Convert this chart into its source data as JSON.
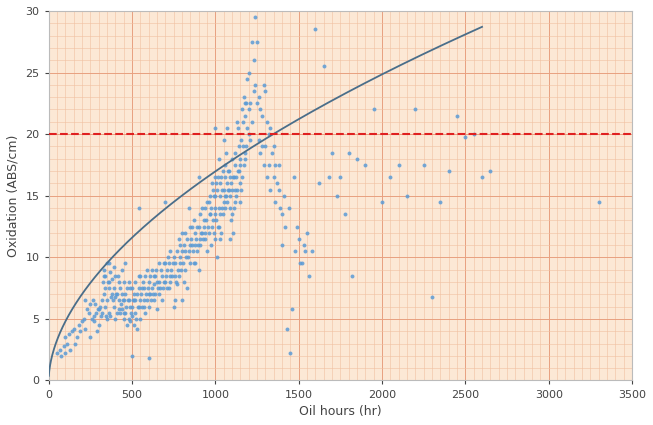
{
  "title": "",
  "xlabel": "Oil hours (hr)",
  "ylabel": "Oxidation (ABS/cm)",
  "xlim": [
    0,
    3500
  ],
  "ylim": [
    0,
    30
  ],
  "xticks": [
    0,
    500,
    1000,
    1500,
    2000,
    2500,
    3000,
    3500
  ],
  "yticks": [
    0,
    5,
    10,
    15,
    20,
    25,
    30
  ],
  "red_line_y": 20,
  "trend_a": 0.38,
  "trend_b": 0.55,
  "background_color": "#fce8d5",
  "grid_major_color": "#e8a080",
  "grid_minor_color": "#f0c0a0",
  "scatter_color": "#5b9bd5",
  "trend_color": "#4a6e8a",
  "red_line_color": "#e02020",
  "scatter_points": [
    [
      50,
      2.2
    ],
    [
      70,
      2.5
    ],
    [
      75,
      2.0
    ],
    [
      90,
      2.8
    ],
    [
      100,
      3.5
    ],
    [
      100,
      2.2
    ],
    [
      110,
      3.0
    ],
    [
      120,
      3.8
    ],
    [
      130,
      2.5
    ],
    [
      140,
      4.0
    ],
    [
      150,
      4.2
    ],
    [
      160,
      3.0
    ],
    [
      170,
      3.5
    ],
    [
      180,
      4.5
    ],
    [
      190,
      4.0
    ],
    [
      200,
      4.8
    ],
    [
      210,
      5.0
    ],
    [
      220,
      6.5
    ],
    [
      220,
      4.2
    ],
    [
      230,
      5.8
    ],
    [
      240,
      5.5
    ],
    [
      250,
      3.5
    ],
    [
      250,
      6.2
    ],
    [
      260,
      5.0
    ],
    [
      265,
      6.5
    ],
    [
      270,
      5.2
    ],
    [
      275,
      4.8
    ],
    [
      280,
      6.2
    ],
    [
      285,
      5.5
    ],
    [
      290,
      4.0
    ],
    [
      295,
      5.8
    ],
    [
      300,
      5.8
    ],
    [
      305,
      4.5
    ],
    [
      310,
      6.0
    ],
    [
      315,
      5.2
    ],
    [
      320,
      5.5
    ],
    [
      320,
      6.5
    ],
    [
      325,
      8.0
    ],
    [
      330,
      9.0
    ],
    [
      330,
      7.0
    ],
    [
      335,
      8.5
    ],
    [
      340,
      8.5
    ],
    [
      340,
      7.5
    ],
    [
      340,
      6.0
    ],
    [
      345,
      5.2
    ],
    [
      350,
      5.0
    ],
    [
      350,
      9.5
    ],
    [
      350,
      6.5
    ],
    [
      355,
      8.0
    ],
    [
      360,
      8.0
    ],
    [
      360,
      5.5
    ],
    [
      360,
      9.5
    ],
    [
      365,
      7.5
    ],
    [
      370,
      5.2
    ],
    [
      370,
      8.8
    ],
    [
      375,
      6.8
    ],
    [
      380,
      8.2
    ],
    [
      380,
      7.0
    ],
    [
      385,
      6.5
    ],
    [
      390,
      9.2
    ],
    [
      390,
      6.0
    ],
    [
      395,
      7.5
    ],
    [
      400,
      5.0
    ],
    [
      400,
      6.8
    ],
    [
      400,
      8.5
    ],
    [
      405,
      7.0
    ],
    [
      410,
      7.0
    ],
    [
      410,
      5.5
    ],
    [
      415,
      8.5
    ],
    [
      420,
      8.0
    ],
    [
      420,
      6.5
    ],
    [
      425,
      5.8
    ],
    [
      430,
      5.5
    ],
    [
      430,
      7.5
    ],
    [
      435,
      6.2
    ],
    [
      440,
      5.8
    ],
    [
      440,
      9.0
    ],
    [
      440,
      7.0
    ],
    [
      445,
      6.5
    ],
    [
      450,
      6.5
    ],
    [
      450,
      5.0
    ],
    [
      450,
      8.0
    ],
    [
      455,
      5.5
    ],
    [
      460,
      5.5
    ],
    [
      460,
      9.5
    ],
    [
      460,
      7.0
    ],
    [
      465,
      6.0
    ],
    [
      470,
      4.5
    ],
    [
      470,
      7.5
    ],
    [
      475,
      6.5
    ],
    [
      480,
      5.0
    ],
    [
      480,
      8.0
    ],
    [
      485,
      6.5
    ],
    [
      490,
      4.8
    ],
    [
      490,
      7.5
    ],
    [
      490,
      6.0
    ],
    [
      495,
      5.5
    ],
    [
      500,
      5.2
    ],
    [
      500,
      6.0
    ],
    [
      500,
      7.5
    ],
    [
      500,
      2.0
    ],
    [
      505,
      6.5
    ],
    [
      510,
      6.5
    ],
    [
      510,
      4.5
    ],
    [
      515,
      7.0
    ],
    [
      520,
      5.5
    ],
    [
      520,
      8.0
    ],
    [
      520,
      6.5
    ],
    [
      525,
      5.0
    ],
    [
      530,
      4.2
    ],
    [
      530,
      7.0
    ],
    [
      535,
      6.0
    ],
    [
      540,
      6.0
    ],
    [
      540,
      8.5
    ],
    [
      540,
      14.0
    ],
    [
      545,
      7.5
    ],
    [
      550,
      5.0
    ],
    [
      550,
      8.5
    ],
    [
      550,
      6.5
    ],
    [
      555,
      7.0
    ],
    [
      560,
      7.5
    ],
    [
      560,
      6.0
    ],
    [
      565,
      8.0
    ],
    [
      570,
      6.5
    ],
    [
      570,
      7.5
    ],
    [
      575,
      6.0
    ],
    [
      580,
      5.5
    ],
    [
      580,
      8.5
    ],
    [
      585,
      7.0
    ],
    [
      590,
      9.0
    ],
    [
      590,
      6.5
    ],
    [
      595,
      7.5
    ],
    [
      600,
      1.8
    ],
    [
      600,
      6.0
    ],
    [
      600,
      8.0
    ],
    [
      605,
      7.0
    ],
    [
      610,
      7.0
    ],
    [
      610,
      8.5
    ],
    [
      615,
      6.5
    ],
    [
      620,
      7.5
    ],
    [
      620,
      9.0
    ],
    [
      625,
      7.0
    ],
    [
      630,
      7.8
    ],
    [
      630,
      8.5
    ],
    [
      635,
      6.5
    ],
    [
      640,
      8.5
    ],
    [
      640,
      7.0
    ],
    [
      645,
      9.0
    ],
    [
      650,
      5.8
    ],
    [
      650,
      8.0
    ],
    [
      655,
      7.5
    ],
    [
      660,
      9.5
    ],
    [
      660,
      7.0
    ],
    [
      665,
      8.0
    ],
    [
      670,
      7.5
    ],
    [
      675,
      9.0
    ],
    [
      680,
      6.5
    ],
    [
      680,
      8.5
    ],
    [
      685,
      7.5
    ],
    [
      690,
      8.0
    ],
    [
      695,
      9.5
    ],
    [
      700,
      8.0
    ],
    [
      700,
      14.5
    ],
    [
      700,
      9.5
    ],
    [
      705,
      8.5
    ],
    [
      710,
      9.0
    ],
    [
      710,
      7.5
    ],
    [
      715,
      10.0
    ],
    [
      720,
      7.5
    ],
    [
      720,
      9.5
    ],
    [
      725,
      8.0
    ],
    [
      730,
      8.5
    ],
    [
      730,
      10.5
    ],
    [
      735,
      9.0
    ],
    [
      740,
      8.5
    ],
    [
      745,
      9.5
    ],
    [
      750,
      6.0
    ],
    [
      750,
      10.0
    ],
    [
      755,
      8.5
    ],
    [
      760,
      6.5
    ],
    [
      760,
      9.5
    ],
    [
      765,
      8.0
    ],
    [
      770,
      7.8
    ],
    [
      770,
      10.5
    ],
    [
      775,
      9.0
    ],
    [
      780,
      11.5
    ],
    [
      780,
      8.5
    ],
    [
      785,
      10.0
    ],
    [
      790,
      9.5
    ],
    [
      790,
      11.0
    ],
    [
      795,
      9.0
    ],
    [
      800,
      6.5
    ],
    [
      800,
      10.5
    ],
    [
      800,
      12.0
    ],
    [
      805,
      9.5
    ],
    [
      810,
      8.0
    ],
    [
      810,
      11.0
    ],
    [
      815,
      10.5
    ],
    [
      820,
      12.0
    ],
    [
      820,
      9.0
    ],
    [
      825,
      10.0
    ],
    [
      830,
      7.5
    ],
    [
      830,
      11.5
    ],
    [
      835,
      10.0
    ],
    [
      840,
      14.0
    ],
    [
      840,
      10.5
    ],
    [
      845,
      11.0
    ],
    [
      850,
      12.5
    ],
    [
      850,
      9.5
    ],
    [
      855,
      11.5
    ],
    [
      860,
      11.0
    ],
    [
      860,
      12.5
    ],
    [
      865,
      10.5
    ],
    [
      870,
      9.5
    ],
    [
      870,
      13.0
    ],
    [
      875,
      11.0
    ],
    [
      880,
      9.5
    ],
    [
      880,
      12.0
    ],
    [
      885,
      11.5
    ],
    [
      890,
      12.5
    ],
    [
      890,
      10.5
    ],
    [
      895,
      11.0
    ],
    [
      900,
      9.0
    ],
    [
      900,
      16.5
    ],
    [
      900,
      12.5
    ],
    [
      905,
      11.5
    ],
    [
      910,
      11.0
    ],
    [
      910,
      13.5
    ],
    [
      915,
      12.0
    ],
    [
      920,
      12.0
    ],
    [
      920,
      14.0
    ],
    [
      925,
      11.5
    ],
    [
      930,
      12.5
    ],
    [
      930,
      13.0
    ],
    [
      935,
      12.0
    ],
    [
      940,
      14.0
    ],
    [
      940,
      11.5
    ],
    [
      945,
      13.0
    ],
    [
      950,
      10.5
    ],
    [
      950,
      14.5
    ],
    [
      955,
      12.5
    ],
    [
      960,
      14.5
    ],
    [
      960,
      12.0
    ],
    [
      965,
      13.5
    ],
    [
      970,
      13.5
    ],
    [
      970,
      15.0
    ],
    [
      975,
      11.0
    ],
    [
      975,
      14.0
    ],
    [
      980,
      16.0
    ],
    [
      980,
      12.5
    ],
    [
      985,
      15.5
    ],
    [
      985,
      13.0
    ],
    [
      990,
      12.0
    ],
    [
      990,
      15.0
    ],
    [
      995,
      15.0
    ],
    [
      995,
      13.5
    ],
    [
      1000,
      11.5
    ],
    [
      1000,
      16.5
    ],
    [
      1000,
      20.5
    ],
    [
      1000,
      14.0
    ],
    [
      1005,
      13.0
    ],
    [
      1005,
      16.0
    ],
    [
      1010,
      10.0
    ],
    [
      1010,
      15.5
    ],
    [
      1015,
      12.5
    ],
    [
      1015,
      16.5
    ],
    [
      1020,
      14.0
    ],
    [
      1020,
      18.0
    ],
    [
      1020,
      12.5
    ],
    [
      1025,
      16.0
    ],
    [
      1025,
      13.5
    ],
    [
      1030,
      11.5
    ],
    [
      1030,
      15.0
    ],
    [
      1035,
      12.0
    ],
    [
      1035,
      16.5
    ],
    [
      1040,
      15.5
    ],
    [
      1040,
      14.0
    ],
    [
      1045,
      13.5
    ],
    [
      1045,
      17.0
    ],
    [
      1050,
      14.5
    ],
    [
      1050,
      19.5
    ],
    [
      1050,
      15.5
    ],
    [
      1055,
      16.5
    ],
    [
      1055,
      14.0
    ],
    [
      1060,
      15.0
    ],
    [
      1060,
      17.5
    ],
    [
      1065,
      18.5
    ],
    [
      1065,
      15.0
    ],
    [
      1070,
      16.0
    ],
    [
      1070,
      20.5
    ],
    [
      1070,
      14.5
    ],
    [
      1075,
      15.5
    ],
    [
      1075,
      17.0
    ],
    [
      1080,
      17.0
    ],
    [
      1080,
      15.5
    ],
    [
      1085,
      14.0
    ],
    [
      1085,
      16.5
    ],
    [
      1090,
      11.5
    ],
    [
      1090,
      15.0
    ],
    [
      1095,
      13.0
    ],
    [
      1095,
      16.0
    ],
    [
      1100,
      15.5
    ],
    [
      1100,
      18.0
    ],
    [
      1100,
      13.5
    ],
    [
      1105,
      12.0
    ],
    [
      1105,
      16.5
    ],
    [
      1110,
      16.5
    ],
    [
      1110,
      14.0
    ],
    [
      1115,
      17.5
    ],
    [
      1115,
      15.5
    ],
    [
      1120,
      14.5
    ],
    [
      1120,
      18.5
    ],
    [
      1125,
      15.0
    ],
    [
      1125,
      16.5
    ],
    [
      1130,
      21.0
    ],
    [
      1130,
      15.5
    ],
    [
      1135,
      20.5
    ],
    [
      1135,
      17.0
    ],
    [
      1140,
      17.0
    ],
    [
      1140,
      19.0
    ],
    [
      1145,
      16.0
    ],
    [
      1145,
      18.0
    ],
    [
      1150,
      14.5
    ],
    [
      1150,
      17.5
    ],
    [
      1155,
      15.5
    ],
    [
      1155,
      19.5
    ],
    [
      1160,
      22.0
    ],
    [
      1160,
      16.5
    ],
    [
      1165,
      19.0
    ],
    [
      1165,
      21.0
    ],
    [
      1170,
      23.0
    ],
    [
      1170,
      17.5
    ],
    [
      1175,
      21.5
    ],
    [
      1175,
      18.5
    ],
    [
      1180,
      18.0
    ],
    [
      1180,
      22.5
    ],
    [
      1185,
      22.5
    ],
    [
      1185,
      19.0
    ],
    [
      1190,
      24.5
    ],
    [
      1190,
      20.5
    ],
    [
      1200,
      20.0
    ],
    [
      1200,
      25.0
    ],
    [
      1200,
      22.0
    ],
    [
      1210,
      22.5
    ],
    [
      1210,
      19.5
    ],
    [
      1220,
      27.5
    ],
    [
      1220,
      21.0
    ],
    [
      1230,
      26.0
    ],
    [
      1230,
      23.5
    ],
    [
      1240,
      29.5
    ],
    [
      1240,
      24.0
    ],
    [
      1250,
      27.5
    ],
    [
      1250,
      22.5
    ],
    [
      1260,
      23.0
    ],
    [
      1260,
      19.5
    ],
    [
      1270,
      22.0
    ],
    [
      1270,
      18.5
    ],
    [
      1280,
      19.0
    ],
    [
      1280,
      21.5
    ],
    [
      1290,
      24.0
    ],
    [
      1290,
      17.5
    ],
    [
      1300,
      23.5
    ],
    [
      1300,
      19.0
    ],
    [
      1310,
      21.0
    ],
    [
      1310,
      16.5
    ],
    [
      1320,
      17.5
    ],
    [
      1320,
      20.0
    ],
    [
      1330,
      20.5
    ],
    [
      1330,
      15.5
    ],
    [
      1340,
      18.5
    ],
    [
      1350,
      16.5
    ],
    [
      1350,
      19.0
    ],
    [
      1360,
      17.5
    ],
    [
      1360,
      14.5
    ],
    [
      1370,
      16.0
    ],
    [
      1380,
      15.5
    ],
    [
      1380,
      17.5
    ],
    [
      1390,
      14.0
    ],
    [
      1400,
      13.5
    ],
    [
      1400,
      11.0
    ],
    [
      1410,
      15.0
    ],
    [
      1420,
      12.5
    ],
    [
      1430,
      4.2
    ],
    [
      1440,
      14.0
    ],
    [
      1450,
      2.2
    ],
    [
      1460,
      5.8
    ],
    [
      1470,
      16.5
    ],
    [
      1480,
      10.5
    ],
    [
      1490,
      12.5
    ],
    [
      1500,
      11.5
    ],
    [
      1510,
      9.5
    ],
    [
      1520,
      9.5
    ],
    [
      1530,
      11.0
    ],
    [
      1540,
      10.5
    ],
    [
      1550,
      12.0
    ],
    [
      1560,
      8.5
    ],
    [
      1580,
      10.5
    ],
    [
      1600,
      28.5
    ],
    [
      1620,
      16.0
    ],
    [
      1650,
      25.5
    ],
    [
      1680,
      16.5
    ],
    [
      1700,
      18.5
    ],
    [
      1730,
      15.0
    ],
    [
      1750,
      16.5
    ],
    [
      1780,
      13.5
    ],
    [
      1800,
      18.5
    ],
    [
      1820,
      8.5
    ],
    [
      1850,
      18.0
    ],
    [
      1900,
      17.5
    ],
    [
      1950,
      22.0
    ],
    [
      2000,
      14.5
    ],
    [
      2050,
      16.5
    ],
    [
      2100,
      17.5
    ],
    [
      2150,
      15.0
    ],
    [
      2200,
      22.0
    ],
    [
      2250,
      17.5
    ],
    [
      2300,
      6.8
    ],
    [
      2350,
      14.5
    ],
    [
      2400,
      17.0
    ],
    [
      2450,
      21.5
    ],
    [
      2500,
      19.8
    ],
    [
      2550,
      20.0
    ],
    [
      2600,
      16.5
    ],
    [
      2650,
      17.0
    ],
    [
      3300,
      14.5
    ]
  ]
}
